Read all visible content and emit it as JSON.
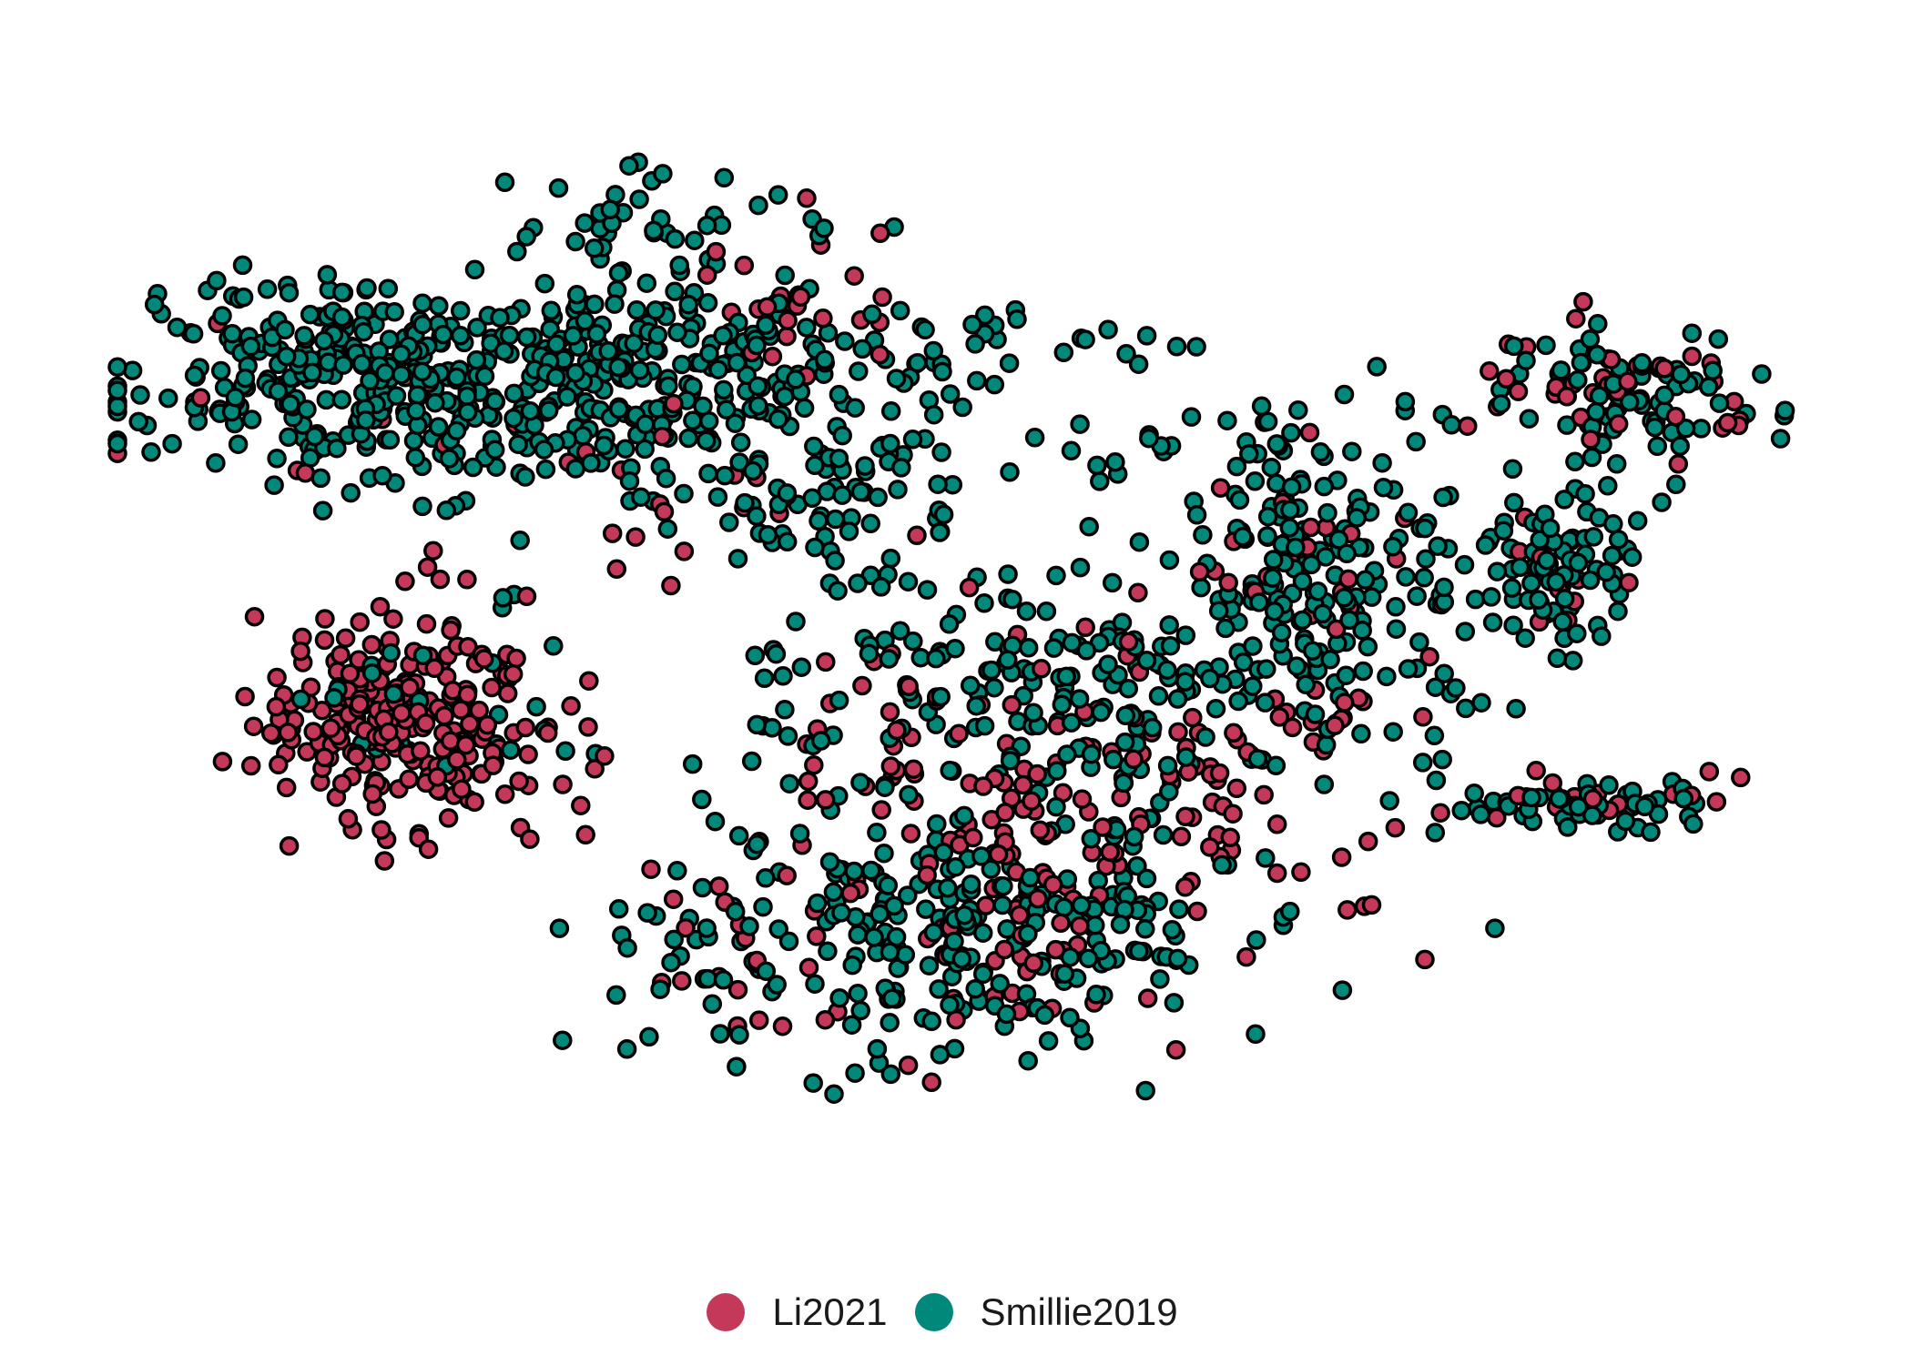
{
  "chart_data": {
    "type": "scatter",
    "title": "",
    "xlabel": "",
    "ylabel": "",
    "grid": false,
    "axes_visible": false,
    "legend_placement": "bottom",
    "xlim": [
      0,
      100
    ],
    "ylim": [
      0,
      100
    ],
    "series": [
      {
        "name": "Li2021",
        "color": "#C4385A",
        "clusters": [
          {
            "cx": 17.5,
            "cy": 42.0,
            "sx": 4.2,
            "sy": 5.5,
            "n": 240
          },
          {
            "cx": 57.0,
            "cy": 35.0,
            "sx": 10.0,
            "sy": 7.0,
            "n": 160
          },
          {
            "cx": 48.0,
            "cy": 20.0,
            "sx": 9.0,
            "sy": 5.0,
            "n": 70
          },
          {
            "cx": 40.0,
            "cy": 82.0,
            "sx": 3.5,
            "sy": 5.0,
            "n": 25
          },
          {
            "cx": 88.0,
            "cy": 73.5,
            "sx": 3.5,
            "sy": 3.0,
            "n": 40
          },
          {
            "cx": 85.5,
            "cy": 33.5,
            "sx": 3.0,
            "sy": 1.5,
            "n": 18
          },
          {
            "cx": 69.0,
            "cy": 58.0,
            "sx": 4.0,
            "sy": 6.0,
            "n": 25
          },
          {
            "cx": 84.0,
            "cy": 56.0,
            "sx": 2.5,
            "sy": 3.0,
            "n": 15
          },
          {
            "cx": 32.0,
            "cy": 65.0,
            "sx": 5.0,
            "sy": 5.0,
            "n": 20
          },
          {
            "cx": 13.0,
            "cy": 72.0,
            "sx": 6.0,
            "sy": 4.0,
            "n": 12
          }
        ]
      },
      {
        "name": "Smillie2019",
        "color": "#00897B",
        "clusters": [
          {
            "cx": 14.0,
            "cy": 75.0,
            "sx": 6.5,
            "sy": 5.0,
            "n": 300
          },
          {
            "cx": 31.0,
            "cy": 75.0,
            "sx": 6.0,
            "sy": 6.0,
            "n": 260
          },
          {
            "cx": 49.0,
            "cy": 78.0,
            "sx": 5.0,
            "sy": 2.5,
            "n": 40
          },
          {
            "cx": 43.0,
            "cy": 64.0,
            "sx": 4.0,
            "sy": 6.0,
            "n": 90
          },
          {
            "cx": 56.0,
            "cy": 44.0,
            "sx": 8.5,
            "sy": 6.0,
            "n": 200
          },
          {
            "cx": 49.0,
            "cy": 21.0,
            "sx": 10.0,
            "sy": 6.0,
            "n": 280
          },
          {
            "cx": 70.0,
            "cy": 57.0,
            "sx": 4.0,
            "sy": 7.0,
            "n": 150
          },
          {
            "cx": 84.0,
            "cy": 56.0,
            "sx": 3.0,
            "sy": 3.5,
            "n": 90
          },
          {
            "cx": 89.0,
            "cy": 73.0,
            "sx": 4.0,
            "sy": 3.5,
            "n": 70
          },
          {
            "cx": 86.0,
            "cy": 33.0,
            "sx": 3.5,
            "sy": 1.5,
            "n": 50
          },
          {
            "cx": 32.0,
            "cy": 91.0,
            "sx": 3.0,
            "sy": 3.0,
            "n": 25
          },
          {
            "cx": 20.0,
            "cy": 42.0,
            "sx": 4.0,
            "sy": 5.0,
            "n": 25
          },
          {
            "cx": 78.0,
            "cy": 48.0,
            "sx": 1.5,
            "sy": 12.0,
            "n": 20
          },
          {
            "cx": 60.0,
            "cy": 68.0,
            "sx": 8.0,
            "sy": 3.0,
            "n": 25
          }
        ]
      }
    ]
  },
  "legend": {
    "items": [
      {
        "label": "Li2021",
        "color": "#C4385A"
      },
      {
        "label": "Smillie2019",
        "color": "#00897B"
      }
    ]
  }
}
